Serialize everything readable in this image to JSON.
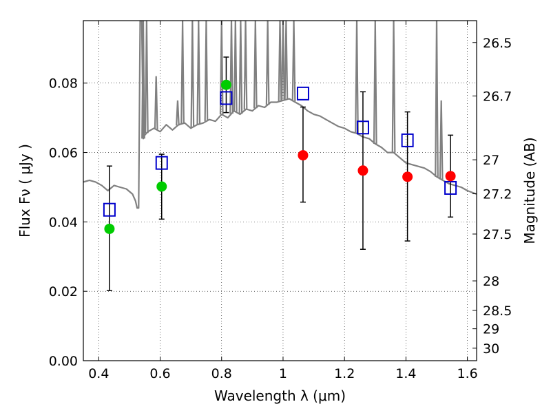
{
  "chart_data": {
    "type": "scatter",
    "title": "",
    "xlabel": "Wavelength  λ (μm)",
    "ylabel": "Flux  Fν  ( μJy )",
    "ylabel_right": "Magnitude (AB)",
    "xlim": [
      0.35,
      1.63
    ],
    "ylim": [
      0,
      0.098
    ],
    "grid": true,
    "x_ticks": [
      0.4,
      0.6,
      0.8,
      1.0,
      1.2,
      1.4,
      1.6
    ],
    "x_tick_labels": [
      "0.4",
      "0.6",
      "0.8",
      "1",
      "1.2",
      "1.4",
      "1.6"
    ],
    "y_ticks": [
      0,
      0.02,
      0.04,
      0.06,
      0.08
    ],
    "y_tick_labels": [
      "0.00",
      "0.02",
      "0.04",
      "0.06",
      "0.08"
    ],
    "right_ticks": [
      {
        "label": "26.5",
        "flux": 0.0917
      },
      {
        "label": "26.7",
        "flux": 0.0763
      },
      {
        "label": "27",
        "flux": 0.0579
      },
      {
        "label": "27.2",
        "flux": 0.0481
      },
      {
        "label": "27.5",
        "flux": 0.0365
      },
      {
        "label": "28",
        "flux": 0.023
      },
      {
        "label": "28.5",
        "flux": 0.0145
      },
      {
        "label": "29",
        "flux": 0.0092
      },
      {
        "label": "30",
        "flux": 0.0036
      }
    ],
    "series": [
      {
        "kind": "spectrum",
        "color": "#808080",
        "x": [
          0.35,
          0.37,
          0.39,
          0.41,
          0.43,
          0.45,
          0.47,
          0.49,
          0.51,
          0.52,
          0.525,
          0.53,
          0.535,
          0.54,
          0.545,
          0.55,
          0.56,
          0.58,
          0.6,
          0.62,
          0.64,
          0.66,
          0.68,
          0.7,
          0.72,
          0.74,
          0.76,
          0.78,
          0.8,
          0.82,
          0.84,
          0.86,
          0.88,
          0.9,
          0.92,
          0.94,
          0.96,
          0.98,
          1.0,
          1.02,
          1.04,
          1.06,
          1.08,
          1.1,
          1.12,
          1.14,
          1.16,
          1.18,
          1.2,
          1.22,
          1.24,
          1.26,
          1.28,
          1.3,
          1.32,
          1.34,
          1.36,
          1.38,
          1.4,
          1.42,
          1.44,
          1.46,
          1.48,
          1.5,
          1.52,
          1.54,
          1.56,
          1.58,
          1.6,
          1.63
        ],
        "y": [
          0.0515,
          0.052,
          0.0515,
          0.0505,
          0.049,
          0.0505,
          0.05,
          0.0495,
          0.048,
          0.046,
          0.044,
          0.044,
          0.098,
          0.098,
          0.064,
          0.065,
          0.066,
          0.067,
          0.066,
          0.068,
          0.0665,
          0.068,
          0.0685,
          0.067,
          0.068,
          0.0685,
          0.0695,
          0.069,
          0.071,
          0.07,
          0.072,
          0.071,
          0.0725,
          0.072,
          0.0735,
          0.073,
          0.0745,
          0.0745,
          0.075,
          0.0755,
          0.0745,
          0.0735,
          0.072,
          0.071,
          0.0705,
          0.0695,
          0.0685,
          0.0675,
          0.067,
          0.066,
          0.0655,
          0.0645,
          0.064,
          0.0625,
          0.0615,
          0.06,
          0.06,
          0.0585,
          0.057,
          0.0565,
          0.056,
          0.0555,
          0.0545,
          0.053,
          0.052,
          0.051,
          0.0505,
          0.05,
          0.049,
          0.048
        ],
        "emission_lines": [
          {
            "x": 0.545,
            "y": 0.098
          },
          {
            "x": 0.556,
            "y": 0.098
          },
          {
            "x": 0.587,
            "y": 0.082
          },
          {
            "x": 0.657,
            "y": 0.075
          },
          {
            "x": 0.673,
            "y": 0.098
          },
          {
            "x": 0.705,
            "y": 0.098
          },
          {
            "x": 0.725,
            "y": 0.098
          },
          {
            "x": 0.75,
            "y": 0.098
          },
          {
            "x": 0.8,
            "y": 0.098
          },
          {
            "x": 0.832,
            "y": 0.098
          },
          {
            "x": 0.845,
            "y": 0.098
          },
          {
            "x": 0.862,
            "y": 0.098
          },
          {
            "x": 0.878,
            "y": 0.098
          },
          {
            "x": 0.91,
            "y": 0.098
          },
          {
            "x": 0.95,
            "y": 0.098
          },
          {
            "x": 0.99,
            "y": 0.098
          },
          {
            "x": 1.0,
            "y": 0.098
          },
          {
            "x": 1.01,
            "y": 0.098
          },
          {
            "x": 1.035,
            "y": 0.098
          },
          {
            "x": 1.24,
            "y": 0.098
          },
          {
            "x": 1.3,
            "y": 0.098
          },
          {
            "x": 1.36,
            "y": 0.098
          },
          {
            "x": 1.5,
            "y": 0.098
          },
          {
            "x": 1.515,
            "y": 0.075
          }
        ]
      },
      {
        "kind": "model-flux",
        "color": "#0000cc",
        "marker": "open-square",
        "x": [
          0.435,
          0.605,
          0.815,
          1.065,
          1.26,
          1.405,
          1.545
        ],
        "y": [
          0.0435,
          0.057,
          0.0757,
          0.077,
          0.0672,
          0.0635,
          0.0498
        ]
      },
      {
        "kind": "measured-detected",
        "color": "#00cc00",
        "marker": "filled-circle",
        "x": [
          0.435,
          0.605,
          0.815
        ],
        "y": [
          0.038,
          0.0502,
          0.0795
        ],
        "err_low": [
          0.0202,
          0.0408,
          0.0715
        ],
        "err_high": [
          0.0561,
          0.0595,
          0.0875
        ]
      },
      {
        "kind": "measured-upper",
        "color": "#ff0000",
        "marker": "filled-circle",
        "x": [
          1.065,
          1.26,
          1.405,
          1.545
        ],
        "y": [
          0.0592,
          0.0548,
          0.053,
          0.0532
        ],
        "err_low": [
          0.0457,
          0.0321,
          0.0345,
          0.0414
        ],
        "err_high": [
          0.0731,
          0.0775,
          0.0717,
          0.065
        ]
      }
    ]
  }
}
